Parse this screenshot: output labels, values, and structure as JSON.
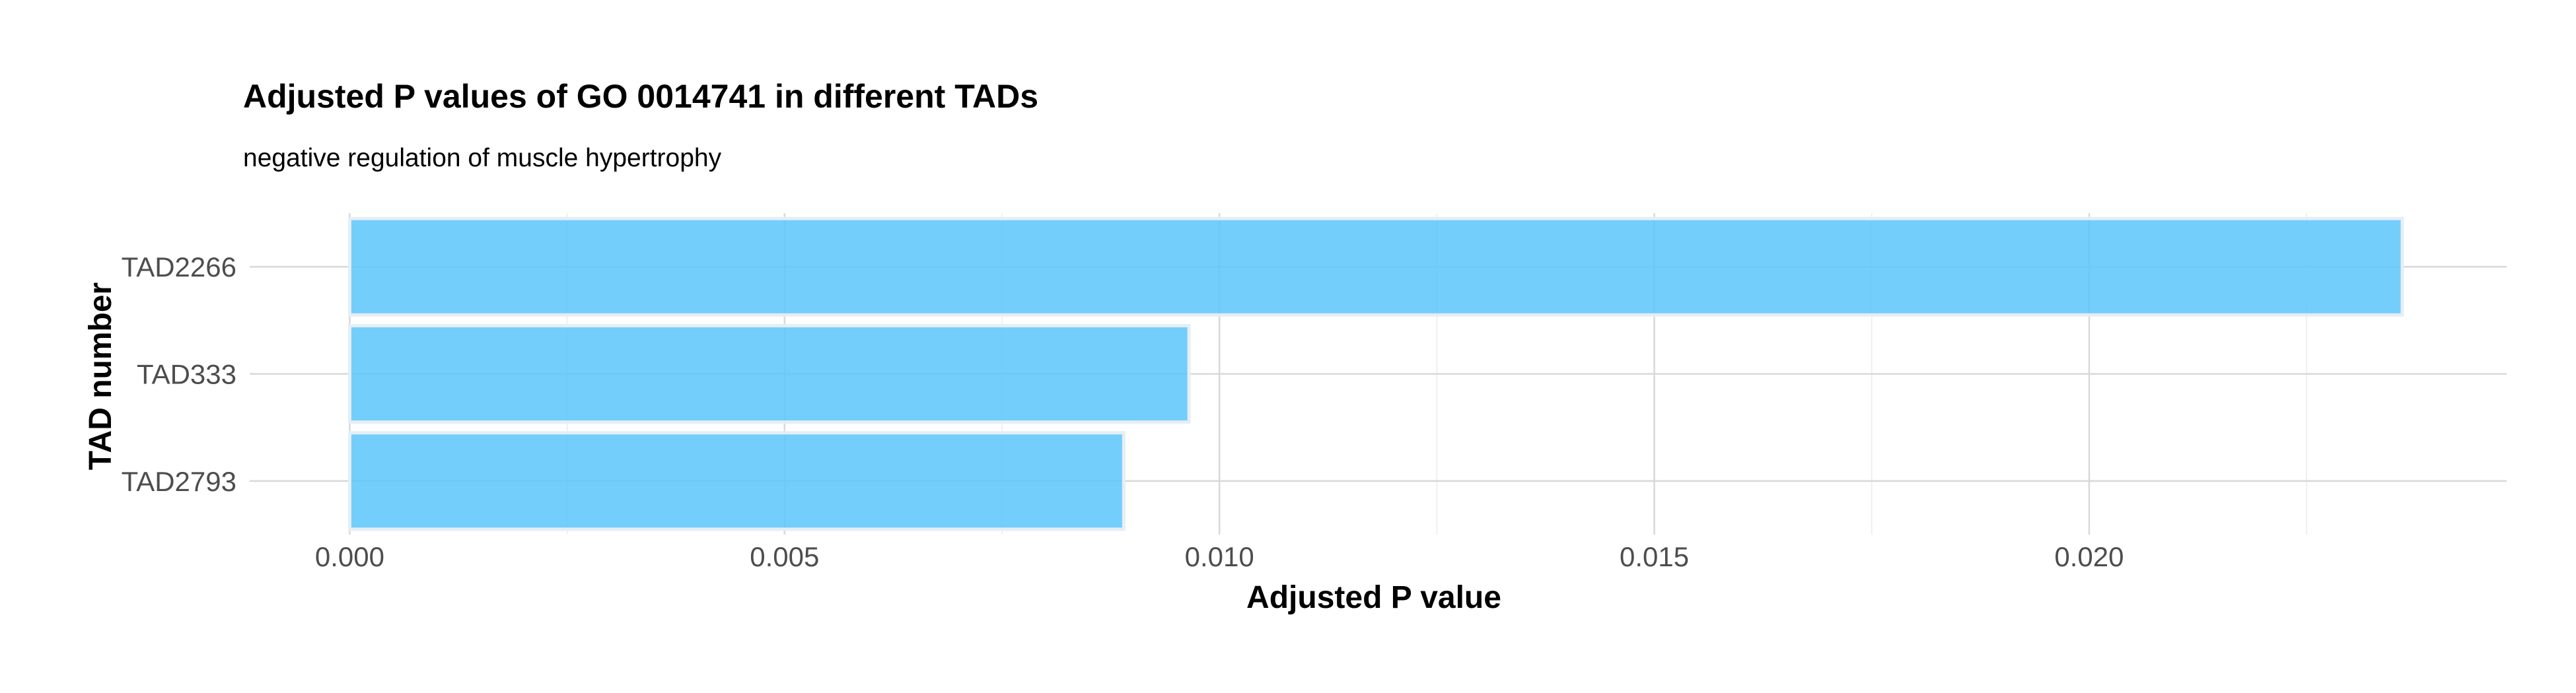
{
  "chart_data": {
    "type": "bar",
    "orientation": "horizontal",
    "title": "Adjusted P values of GO 0014741 in different TADs",
    "subtitle": "negative regulation of muscle hypertrophy",
    "xlabel": "Adjusted P value",
    "ylabel": "TAD number",
    "categories": [
      "TAD2266",
      "TAD333",
      "TAD2793"
    ],
    "values": [
      0.0236,
      0.00965,
      0.0089
    ],
    "xlim": [
      -0.00115,
      0.0248
    ],
    "x_ticks": [
      {
        "value": 0.0,
        "label": "0.000"
      },
      {
        "value": 0.005,
        "label": "0.005"
      },
      {
        "value": 0.01,
        "label": "0.010"
      },
      {
        "value": 0.015,
        "label": "0.015"
      },
      {
        "value": 0.02,
        "label": "0.020"
      }
    ],
    "x_minor_ticks": [
      0.0025,
      0.0075,
      0.0125,
      0.0175,
      0.0225
    ],
    "grid": true,
    "legend": false,
    "bar_color": "#5bc5fb"
  }
}
